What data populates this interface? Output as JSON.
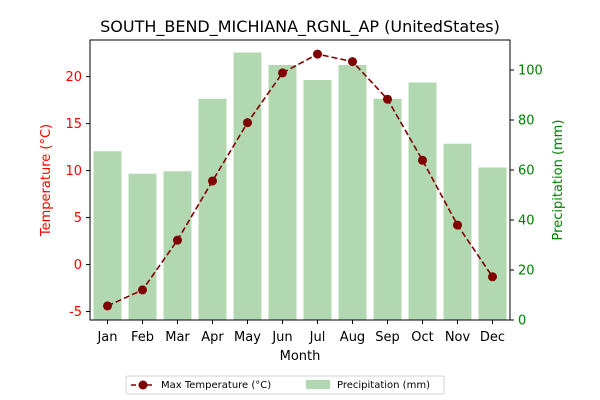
{
  "chart_data": {
    "type": "bar+line",
    "title": "SOUTH_BEND_MICHIANA_RGNL_AP (UnitedStates)",
    "xlabel": "Month",
    "categories": [
      "Jan",
      "Feb",
      "Mar",
      "Apr",
      "May",
      "Jun",
      "Jul",
      "Aug",
      "Sep",
      "Oct",
      "Nov",
      "Dec"
    ],
    "left_axis": {
      "label": "Temperature (°C)",
      "color": "#ff0000",
      "ylim": [
        -5.9,
        23.9
      ],
      "ticks": [
        -5,
        0,
        5,
        10,
        15,
        20
      ]
    },
    "right_axis": {
      "label": "Precipitation (mm)",
      "color": "#008000",
      "ylim": [
        0,
        112
      ],
      "ticks": [
        0,
        20,
        40,
        60,
        80,
        100
      ]
    },
    "series": [
      {
        "name": "Max Temperature (°C)",
        "type": "line",
        "axis": "left",
        "color": "#800000",
        "line_style": "dashed",
        "marker": "circle",
        "values": [
          -4.4,
          -2.7,
          2.6,
          8.9,
          15.1,
          20.4,
          22.4,
          21.6,
          17.6,
          11.1,
          4.2,
          -1.3
        ]
      },
      {
        "name": "Precipitation (mm)",
        "type": "bar",
        "axis": "right",
        "color": "#b2d8b2",
        "values": [
          67.5,
          58.5,
          59.5,
          88.5,
          107,
          102,
          96,
          102,
          88.5,
          95,
          70.5,
          61
        ]
      }
    ],
    "legend": {
      "placement": "bottom-center",
      "columns": 2
    }
  }
}
